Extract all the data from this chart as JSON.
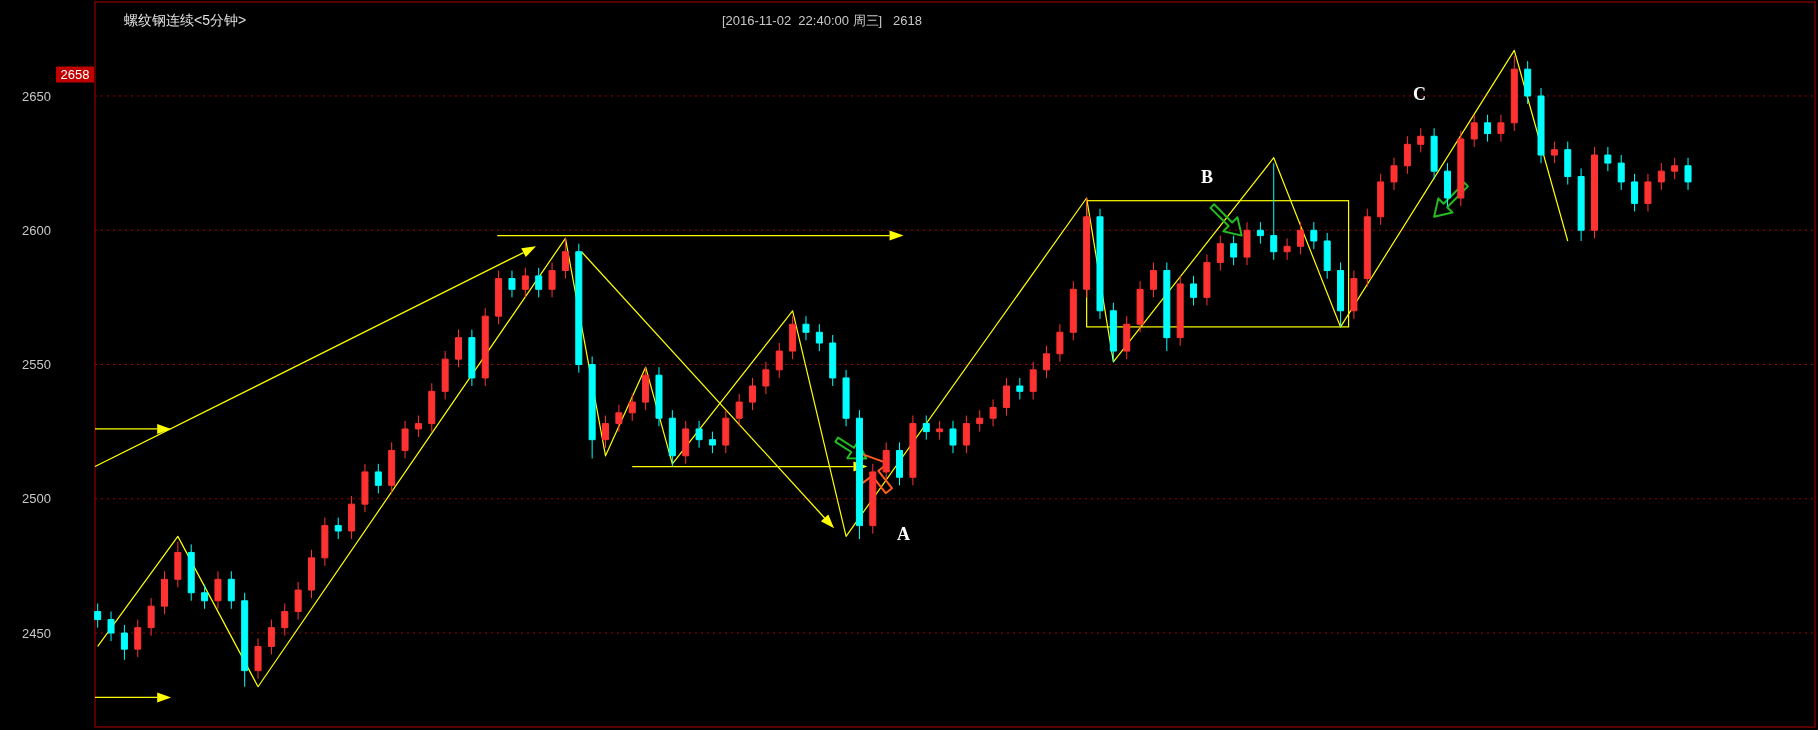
{
  "chart_data": {
    "type": "candlestick",
    "title": "螺纹钢连续<5分钟>",
    "subtitle": "[2016-11-02  22:40:00 周三]   2618",
    "categories": [
      null,
      null,
      null,
      null,
      null,
      null,
      null,
      null,
      null,
      null,
      null,
      null,
      null,
      null,
      null,
      null,
      null,
      null,
      null,
      null,
      null,
      null,
      null,
      null,
      null,
      null,
      null,
      null,
      null,
      null,
      null,
      null,
      null,
      null,
      null,
      null,
      null,
      null,
      null,
      null,
      null,
      null,
      null,
      null,
      null,
      null,
      null,
      null,
      null,
      null,
      null,
      null,
      null,
      null,
      null,
      null,
      null,
      null,
      null,
      null,
      null,
      null,
      null,
      null,
      null,
      null,
      null,
      null,
      null,
      null,
      null,
      null,
      null,
      null,
      null,
      null,
      null,
      null,
      null,
      null,
      null,
      null,
      null,
      null,
      null,
      null,
      null,
      null,
      null,
      null,
      null,
      null,
      null,
      null,
      null,
      null,
      null,
      null,
      null,
      null,
      null,
      null,
      null,
      null,
      null,
      null,
      null,
      null,
      null,
      null,
      null,
      null,
      null,
      null,
      null,
      null,
      null,
      null,
      null,
      null,
      null,
      null,
      null,
      null,
      null,
      null,
      null,
      null,
      null
    ],
    "ohlc": [
      [
        2458,
        2461,
        2452,
        2455
      ],
      [
        2455,
        2458,
        2447,
        2450
      ],
      [
        2450,
        2453,
        2440,
        2444
      ],
      [
        2444,
        2455,
        2441,
        2452
      ],
      [
        2452,
        2463,
        2449,
        2460
      ],
      [
        2460,
        2473,
        2457,
        2470
      ],
      [
        2470,
        2484,
        2467,
        2480
      ],
      [
        2480,
        2483,
        2462,
        2465
      ],
      [
        2465,
        2468,
        2459,
        2462
      ],
      [
        2462,
        2473,
        2459,
        2470
      ],
      [
        2470,
        2473,
        2459,
        2462
      ],
      [
        2462,
        2465,
        2430,
        2436
      ],
      [
        2436,
        2448,
        2433,
        2445
      ],
      [
        2445,
        2455,
        2442,
        2452
      ],
      [
        2452,
        2461,
        2449,
        2458
      ],
      [
        2458,
        2469,
        2455,
        2466
      ],
      [
        2466,
        2481,
        2463,
        2478
      ],
      [
        2478,
        2493,
        2475,
        2490
      ],
      [
        2490,
        2493,
        2485,
        2488
      ],
      [
        2488,
        2501,
        2485,
        2498
      ],
      [
        2498,
        2513,
        2495,
        2510
      ],
      [
        2510,
        2513,
        2502,
        2505
      ],
      [
        2505,
        2521,
        2502,
        2518
      ],
      [
        2518,
        2529,
        2515,
        2526
      ],
      [
        2526,
        2531,
        2523,
        2528
      ],
      [
        2528,
        2543,
        2525,
        2540
      ],
      [
        2540,
        2555,
        2537,
        2552
      ],
      [
        2552,
        2563,
        2549,
        2560
      ],
      [
        2560,
        2563,
        2542,
        2545
      ],
      [
        2545,
        2571,
        2542,
        2568
      ],
      [
        2568,
        2585,
        2565,
        2582
      ],
      [
        2582,
        2585,
        2575,
        2578
      ],
      [
        2578,
        2586,
        2575,
        2583
      ],
      [
        2583,
        2586,
        2575,
        2578
      ],
      [
        2578,
        2588,
        2575,
        2585
      ],
      [
        2585,
        2597,
        2582,
        2592
      ],
      [
        2592,
        2595,
        2547,
        2550
      ],
      [
        2550,
        2553,
        2515,
        2522
      ],
      [
        2522,
        2531,
        2519,
        2528
      ],
      [
        2528,
        2535,
        2525,
        2532
      ],
      [
        2532,
        2539,
        2529,
        2536
      ],
      [
        2536,
        2549,
        2533,
        2546
      ],
      [
        2546,
        2549,
        2527,
        2530
      ],
      [
        2530,
        2533,
        2512,
        2516
      ],
      [
        2516,
        2529,
        2513,
        2526
      ],
      [
        2526,
        2529,
        2519,
        2522
      ],
      [
        2522,
        2525,
        2517,
        2520
      ],
      [
        2520,
        2533,
        2517,
        2530
      ],
      [
        2530,
        2539,
        2527,
        2536
      ],
      [
        2536,
        2545,
        2533,
        2542
      ],
      [
        2542,
        2551,
        2539,
        2548
      ],
      [
        2548,
        2558,
        2545,
        2555
      ],
      [
        2555,
        2568,
        2552,
        2565
      ],
      [
        2565,
        2568,
        2559,
        2562
      ],
      [
        2562,
        2565,
        2555,
        2558
      ],
      [
        2558,
        2561,
        2542,
        2545
      ],
      [
        2545,
        2548,
        2527,
        2530
      ],
      [
        2530,
        2533,
        2485,
        2490
      ],
      [
        2490,
        2513,
        2487,
        2510
      ],
      [
        2510,
        2521,
        2507,
        2518
      ],
      [
        2518,
        2521,
        2505,
        2508
      ],
      [
        2508,
        2531,
        2505,
        2528
      ],
      [
        2528,
        2531,
        2522,
        2525
      ],
      [
        2525,
        2529,
        2522,
        2526
      ],
      [
        2526,
        2529,
        2517,
        2520
      ],
      [
        2520,
        2531,
        2517,
        2528
      ],
      [
        2528,
        2533,
        2525,
        2530
      ],
      [
        2530,
        2537,
        2527,
        2534
      ],
      [
        2534,
        2545,
        2531,
        2542
      ],
      [
        2542,
        2545,
        2537,
        2540
      ],
      [
        2540,
        2551,
        2537,
        2548
      ],
      [
        2548,
        2557,
        2545,
        2554
      ],
      [
        2554,
        2565,
        2551,
        2562
      ],
      [
        2562,
        2581,
        2559,
        2578
      ],
      [
        2578,
        2612,
        2575,
        2605
      ],
      [
        2605,
        2608,
        2567,
        2570
      ],
      [
        2570,
        2573,
        2551,
        2555
      ],
      [
        2555,
        2568,
        2552,
        2565
      ],
      [
        2565,
        2581,
        2562,
        2578
      ],
      [
        2578,
        2588,
        2575,
        2585
      ],
      [
        2585,
        2588,
        2555,
        2560
      ],
      [
        2560,
        2583,
        2557,
        2580
      ],
      [
        2580,
        2583,
        2572,
        2575
      ],
      [
        2575,
        2591,
        2572,
        2588
      ],
      [
        2588,
        2598,
        2585,
        2595
      ],
      [
        2595,
        2598,
        2587,
        2590
      ],
      [
        2590,
        2603,
        2587,
        2600
      ],
      [
        2600,
        2603,
        2595,
        2598
      ],
      [
        2598,
        2625,
        2589,
        2592
      ],
      [
        2592,
        2597,
        2589,
        2594
      ],
      [
        2594,
        2603,
        2591,
        2600
      ],
      [
        2600,
        2603,
        2593,
        2596
      ],
      [
        2596,
        2599,
        2582,
        2585
      ],
      [
        2585,
        2588,
        2564,
        2570
      ],
      [
        2570,
        2585,
        2567,
        2582
      ],
      [
        2582,
        2608,
        2579,
        2605
      ],
      [
        2605,
        2621,
        2602,
        2618
      ],
      [
        2618,
        2627,
        2615,
        2624
      ],
      [
        2624,
        2635,
        2621,
        2632
      ],
      [
        2632,
        2638,
        2629,
        2635
      ],
      [
        2635,
        2638,
        2619,
        2622
      ],
      [
        2622,
        2625,
        2609,
        2612
      ],
      [
        2612,
        2637,
        2609,
        2634
      ],
      [
        2634,
        2643,
        2631,
        2640
      ],
      [
        2640,
        2643,
        2633,
        2636
      ],
      [
        2636,
        2643,
        2633,
        2640
      ],
      [
        2640,
        2665,
        2637,
        2660
      ],
      [
        2660,
        2663,
        2647,
        2650
      ],
      [
        2650,
        2653,
        2625,
        2628
      ],
      [
        2628,
        2633,
        2625,
        2630
      ],
      [
        2630,
        2633,
        2617,
        2620
      ],
      [
        2620,
        2623,
        2596,
        2600
      ],
      [
        2600,
        2631,
        2597,
        2628
      ],
      [
        2628,
        2631,
        2622,
        2625
      ],
      [
        2625,
        2628,
        2615,
        2618
      ],
      [
        2618,
        2621,
        2607,
        2610
      ],
      [
        2610,
        2621,
        2607,
        2618
      ],
      [
        2618,
        2625,
        2615,
        2622
      ],
      [
        2622,
        2627,
        2619,
        2624
      ],
      [
        2624,
        2627,
        2615,
        2618
      ],
      null,
      null,
      null,
      null,
      null,
      null,
      null,
      null,
      null
    ],
    "colors": [
      "#00ffff",
      "#00ffff",
      "#00ffff",
      "#ff3232",
      "#ff3232",
      "#ff3232",
      "#ff3232",
      "#00ffff",
      "#00ffff",
      "#ff3232",
      "#00ffff",
      "#00ffff",
      "#ff3232",
      "#ff3232",
      "#ff3232",
      "#ff3232",
      "#ff3232",
      "#ff3232",
      "#00ffff",
      "#ff3232",
      "#ff3232",
      "#00ffff",
      "#ff3232",
      "#ff3232",
      "#ff3232",
      "#ff3232",
      "#ff3232",
      "#ff3232",
      "#00ffff",
      "#ff3232",
      "#ff3232",
      "#00ffff",
      "#ff3232",
      "#00ffff",
      "#ff3232",
      "#ff3232",
      "#00ffff",
      "#00ffff",
      "#ff3232",
      "#ff3232",
      "#ff3232",
      "#ff3232",
      "#00ffff",
      "#00ffff",
      "#ff3232",
      "#00ffff",
      "#00ffff",
      "#ff3232",
      "#ff3232",
      "#ff3232",
      "#ff3232",
      "#ff3232",
      "#ff3232",
      "#00ffff",
      "#00ffff",
      "#00ffff",
      "#00ffff",
      "#00ffff",
      "#ff3232",
      "#ff3232",
      "#00ffff",
      "#ff3232",
      "#00ffff",
      "#ff3232",
      "#00ffff",
      "#ff3232",
      "#ff3232",
      "#ff3232",
      "#ff3232",
      "#00ffff",
      "#ff3232",
      "#ff3232",
      "#ff3232",
      "#ff3232",
      "#ff3232",
      "#00ffff",
      "#00ffff",
      "#ff3232",
      "#ff3232",
      "#ff3232",
      "#00ffff",
      "#ff3232",
      "#00ffff",
      "#ff3232",
      "#ff3232",
      "#00ffff",
      "#ff3232",
      "#00ffff",
      "#00ffff",
      "#ff3232",
      "#ff3232",
      "#00ffff",
      "#00ffff",
      "#00ffff",
      "#ff3232",
      "#ff3232",
      "#ff3232",
      "#ff3232",
      "#ff3232",
      "#ff3232",
      "#00ffff",
      "#00ffff",
      "#ff3232",
      "#ff3232",
      "#00ffff",
      "#ff3232",
      "#ff3232",
      "#00ffff",
      "#00ffff",
      "#ff3232",
      "#00ffff",
      "#00ffff",
      "#ff3232",
      "#00ffff",
      "#00ffff",
      "#00ffff",
      "#ff3232",
      "#ff3232",
      "#ff3232",
      "#00ffff",
      null,
      null,
      null,
      null,
      null,
      null,
      null,
      null,
      null
    ],
    "series": [
      {
        "type": "line",
        "color": "#ffff00",
        "values": [
          2445,
          null,
          null,
          null,
          null,
          null,
          2486,
          null,
          null,
          null,
          null,
          null,
          2430,
          null,
          null,
          null,
          null,
          null,
          null,
          null,
          null,
          null,
          null,
          null,
          null,
          null,
          null,
          null,
          null,
          null,
          null,
          null,
          null,
          null,
          null,
          2597,
          null,
          null,
          2516,
          null,
          null,
          2549,
          null,
          2513,
          null,
          null,
          null,
          null,
          null,
          null,
          null,
          null,
          2570,
          null,
          null,
          null,
          2486,
          null,
          null,
          null,
          null,
          null,
          null,
          null,
          null,
          null,
          null,
          null,
          null,
          null,
          null,
          null,
          null,
          null,
          2612,
          null,
          2551,
          null,
          null,
          null,
          null,
          null,
          null,
          null,
          null,
          null,
          null,
          null,
          2627,
          null,
          null,
          null,
          null,
          2564,
          null,
          null,
          null,
          null,
          null,
          null,
          null,
          null,
          null,
          null,
          null,
          null,
          2667,
          null,
          null,
          null,
          2596,
          null,
          null,
          null,
          null,
          null,
          null,
          null,
          null,
          null,
          null,
          null,
          null,
          null,
          null,
          null,
          null,
          null,
          null
        ]
      }
    ],
    "ylim": [
      2415,
      2685
    ],
    "yticks": [
      2450,
      2500,
      2550,
      2600,
      2650
    ],
    "grid": "y",
    "annotations": [
      "2658",
      "A",
      "B",
      "C"
    ]
  }
}
